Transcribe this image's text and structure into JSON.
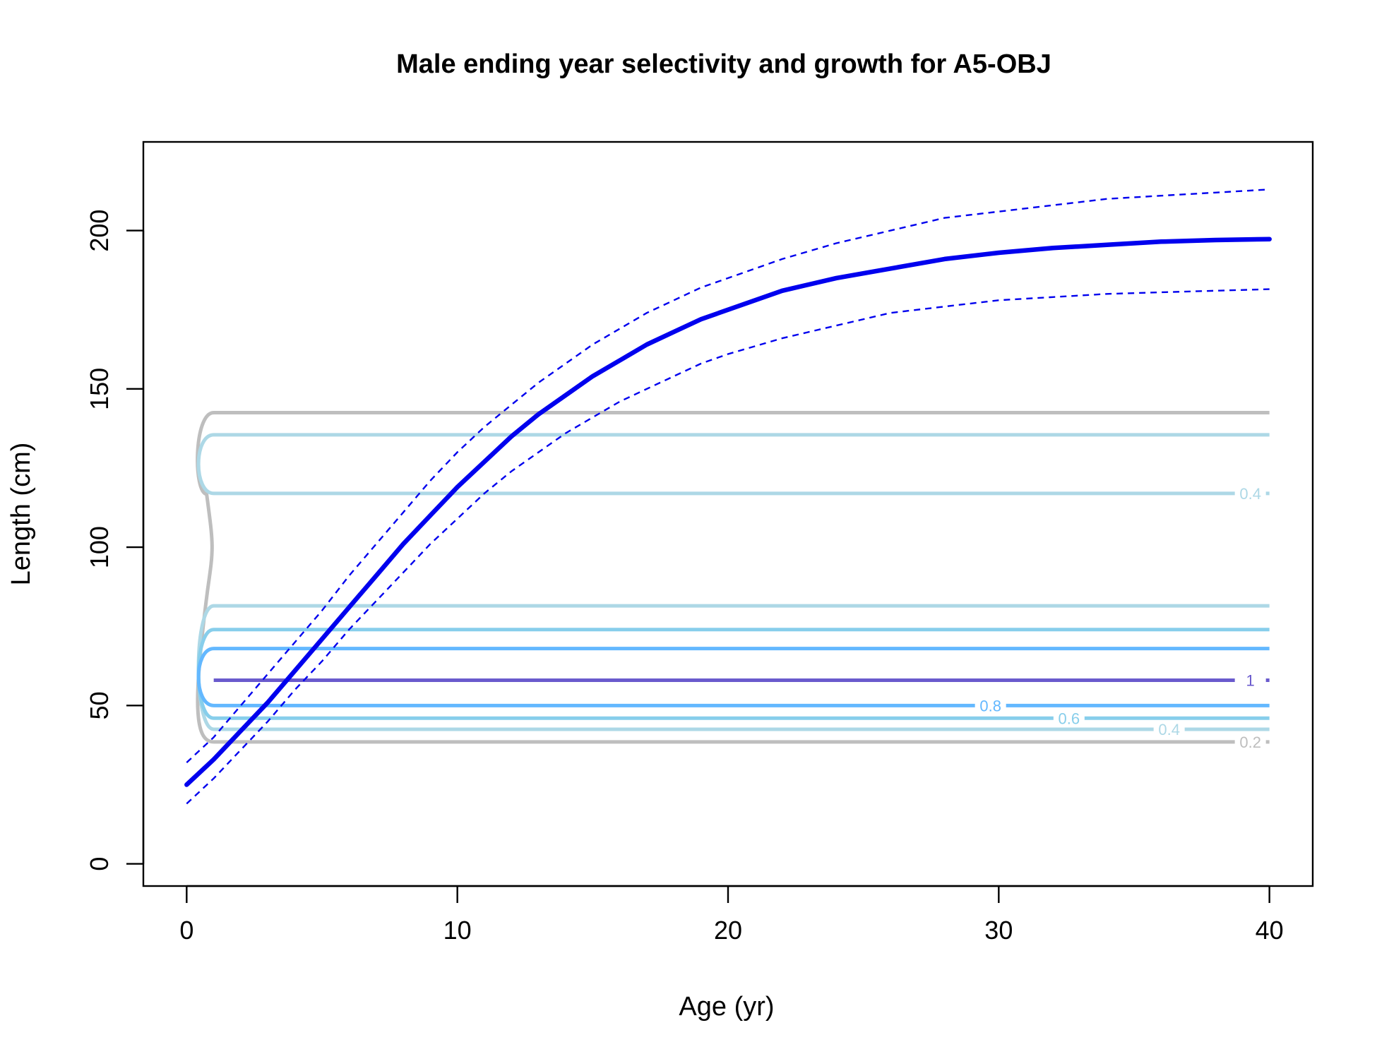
{
  "chart_data": {
    "type": "line",
    "title": "Male ending year selectivity and growth for A5-OBJ",
    "xlabel": "Age (yr)",
    "ylabel": "Length (cm)",
    "xlim": [
      -1.6,
      41.6
    ],
    "ylim": [
      -7,
      228
    ],
    "x_ticks": [
      0,
      10,
      20,
      30,
      40
    ],
    "x_tick_labels": [
      "0",
      "10",
      "20",
      "30",
      "40"
    ],
    "y_ticks": [
      0,
      50,
      100,
      150,
      200
    ],
    "y_tick_labels": [
      "0",
      "50",
      "100",
      "150",
      "200"
    ],
    "grid": false,
    "legend": "none",
    "series": [
      {
        "role": "mean-length-at-age",
        "color": "#0000EE",
        "style": "solid",
        "x": [
          0,
          1,
          2,
          3,
          4,
          5,
          6,
          7,
          8,
          9,
          10,
          11,
          12,
          13,
          14,
          15,
          16,
          17,
          18,
          19,
          20,
          22,
          24,
          26,
          28,
          30,
          32,
          34,
          36,
          38,
          40
        ],
        "y": [
          25,
          33,
          42,
          51,
          61,
          71,
          81,
          91,
          101,
          110,
          119,
          127,
          135,
          142,
          148,
          154,
          159,
          164,
          168,
          172,
          175,
          181,
          185,
          188,
          191,
          193,
          194.5,
          195.5,
          196.5,
          197,
          197.3
        ]
      },
      {
        "role": "upper-interval",
        "color": "#0000EE",
        "style": "dashed",
        "x": [
          0,
          1,
          2,
          3,
          4,
          5,
          6,
          7,
          8,
          9,
          10,
          11,
          12,
          13,
          14,
          15,
          16,
          17,
          18,
          19,
          20,
          22,
          24,
          26,
          28,
          30,
          32,
          34,
          36,
          38,
          40
        ],
        "y": [
          32,
          40,
          50,
          60,
          70,
          80,
          91,
          101,
          111,
          121,
          130,
          138,
          145,
          152,
          158,
          164,
          169,
          174,
          178,
          182,
          185,
          191,
          196,
          200,
          204,
          206,
          208,
          210,
          211,
          212,
          213
        ]
      },
      {
        "role": "lower-interval",
        "color": "#0000EE",
        "style": "dashed",
        "x": [
          0,
          1,
          2,
          3,
          4,
          5,
          6,
          7,
          8,
          9,
          10,
          11,
          12,
          13,
          14,
          15,
          16,
          17,
          18,
          19,
          20,
          22,
          24,
          26,
          28,
          30,
          32,
          34,
          36,
          38,
          40
        ],
        "y": [
          19,
          27,
          36,
          45,
          55,
          64,
          74,
          83,
          92,
          101,
          109,
          117,
          124,
          130,
          136,
          141,
          146,
          150,
          154,
          158,
          161,
          166,
          170,
          174,
          176,
          178,
          179,
          180,
          180.5,
          181,
          181.5
        ]
      }
    ],
    "contours": [
      {
        "level": "0.2",
        "color": "#BEBEBE",
        "x_start": 1,
        "x_end": 40,
        "y_low": 38.5,
        "y_high": 142.5,
        "waist_y": 100,
        "label": "0.2",
        "label_x": 40,
        "label_y": 38.5
      },
      {
        "level": "0.4",
        "color": "#ADD8E6",
        "x_start": 1,
        "x_end": 40,
        "y_low": 117,
        "y_high": 135.5,
        "label": "0.4",
        "label_x": 40,
        "label_y": 117
      },
      {
        "level": "0.4",
        "color": "#ADD8E6",
        "x_start": 1,
        "x_end": 40,
        "y_low": 42.5,
        "y_high": 81.5,
        "label": "0.4",
        "label_x": 37,
        "label_y": 42.5
      },
      {
        "level": "0.6",
        "color": "#87CEEB",
        "x_start": 1,
        "x_end": 40,
        "y_low": 46,
        "y_high": 74,
        "label": "0.6",
        "label_x": 33.3,
        "label_y": 46
      },
      {
        "level": "0.8",
        "color": "#63B8FF",
        "x_start": 1,
        "x_end": 40,
        "y_low": 50,
        "y_high": 68,
        "label": "0.8",
        "label_x": 30.4,
        "label_y": 50
      },
      {
        "level": "1",
        "color": "#6A5ACD",
        "x_start": 1,
        "x_end": 40,
        "y": 58,
        "label": "1",
        "label_x": 40,
        "label_y": 58
      }
    ]
  }
}
